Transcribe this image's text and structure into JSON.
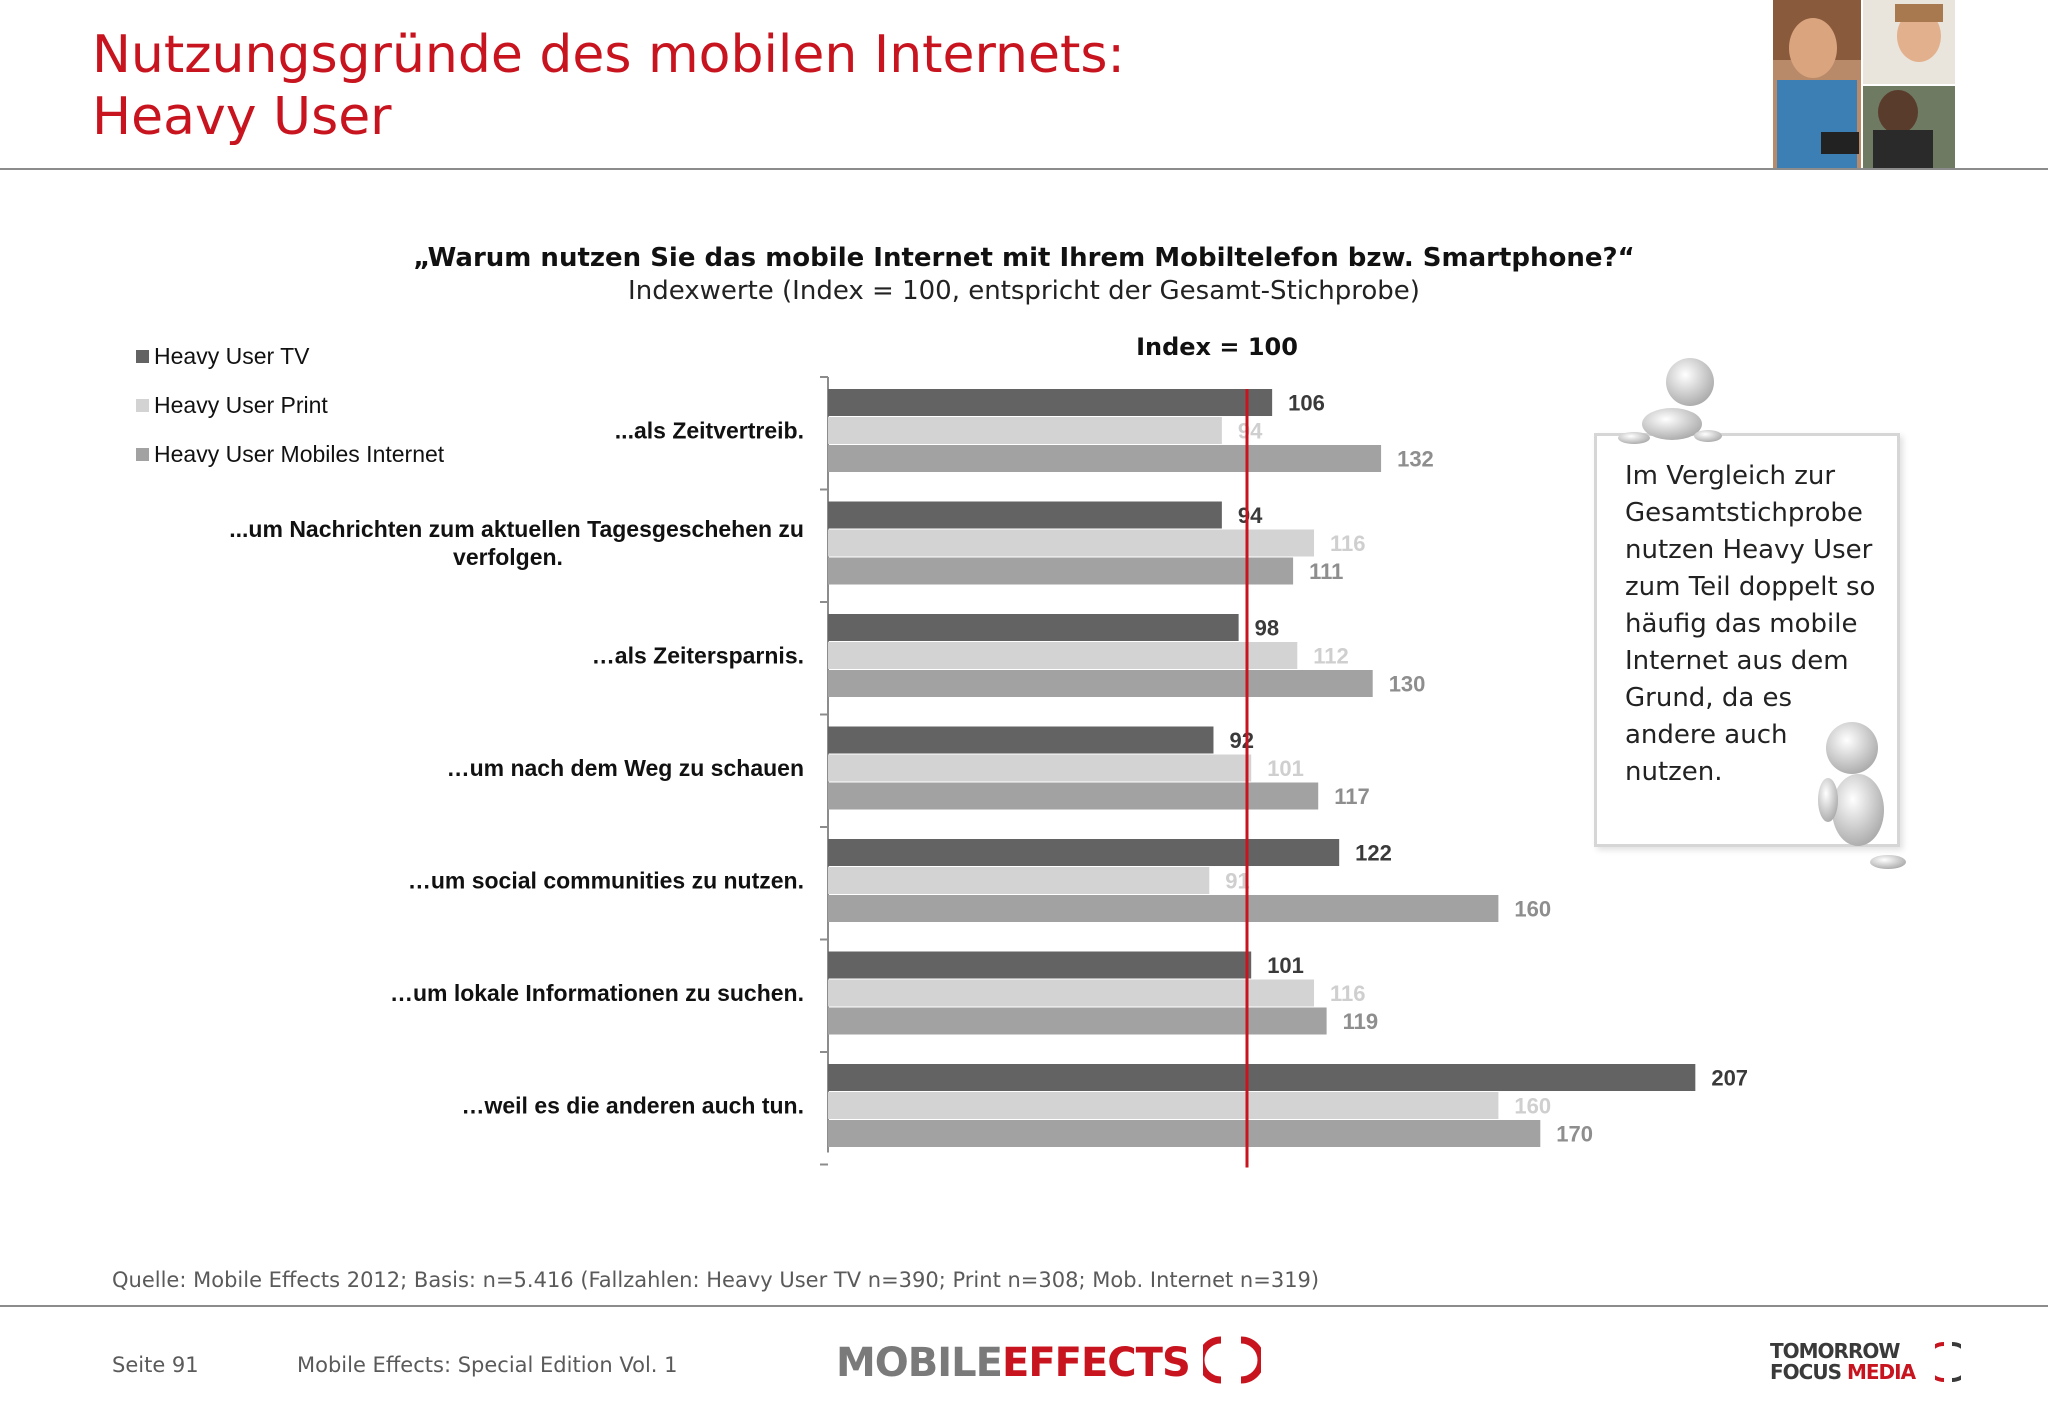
{
  "header": {
    "title_line1": "Nutzungsgründe des mobilen Internets:",
    "title_line2": "Heavy User"
  },
  "question": "„Warum nutzen Sie das mobile Internet mit Ihrem Mobiltelefon bzw. Smartphone?“",
  "subtitle": "Indexwerte (Index = 100, entspricht der Gesamt-Stichprobe)",
  "callout": {
    "text": "Im Vergleich zur Gesamtstichprobe nutzen Heavy User zum Teil doppelt so häufig das mobile Internet aus dem Grund, da es andere auch nutzen."
  },
  "source": "Quelle: Mobile Effects 2012; Basis: n=5.416 (Fallzahlen: Heavy User TV n=390; Print n=308; Mob. Internet n=319)",
  "footer": {
    "page": "Seite 91",
    "edition": "Mobile Effects: Special Edition Vol. 1",
    "logo_left_part1": "MOBILE",
    "logo_left_part2": "EFFECTS",
    "logo_right_line1a": "TOMORROW",
    "logo_right_line2a": "FOCUS",
    "logo_right_line2b": "MEDIA"
  },
  "colors": {
    "accent": "#c8141e",
    "series_tv": "#636363",
    "series_print": "#d3d3d3",
    "series_mobile": "#a2a2a2",
    "label_tv": "#3a3a3a",
    "label_print": "#cfcfcf",
    "label_mobile": "#8e8e8e"
  },
  "chart_data": {
    "type": "bar",
    "orientation": "horizontal",
    "reference_line": {
      "value": 100,
      "label": "Index = 100"
    },
    "categories": [
      "...als Zeitvertreib.",
      "...um Nachrichten zum aktuellen Tagesgeschehen zu verfolgen.",
      "…als Zeitersparnis.",
      "…um nach dem Weg zu schauen",
      "…um social communities zu nutzen.",
      "…um lokale Informationen zu suchen.",
      "…weil es die anderen auch tun."
    ],
    "series": [
      {
        "name": "Heavy User TV",
        "values": [
          106,
          94,
          98,
          92,
          122,
          101,
          207
        ]
      },
      {
        "name": "Heavy User Print",
        "values": [
          94,
          116,
          112,
          101,
          91,
          116,
          160
        ]
      },
      {
        "name": "Heavy User Mobiles Internet",
        "values": [
          132,
          111,
          130,
          117,
          160,
          119,
          170
        ]
      }
    ],
    "xlim": [
      0,
      220
    ],
    "legend_position": "top-left",
    "grid": false
  }
}
